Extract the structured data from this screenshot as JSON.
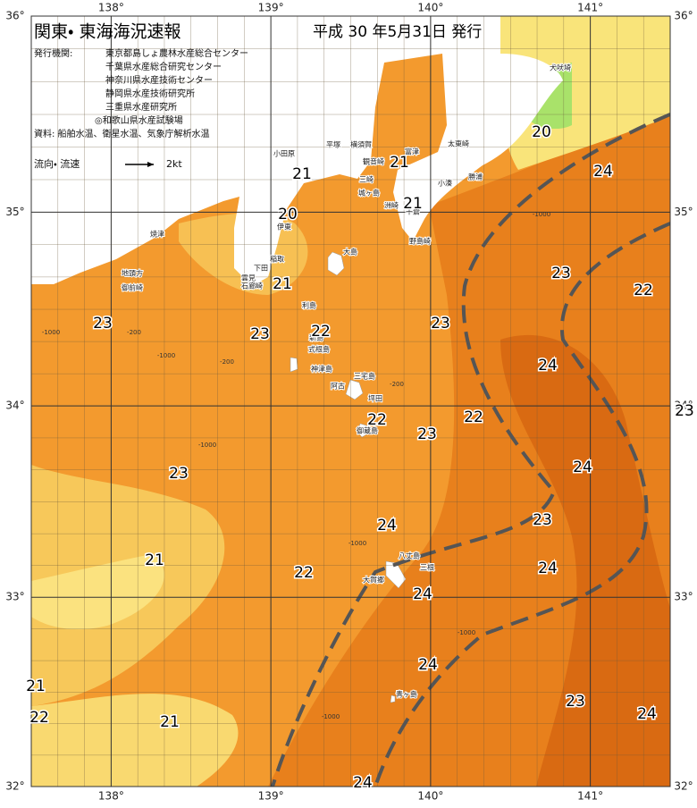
{
  "header": {
    "title": "関東・ 東海海況速報",
    "date": "平成 30 年5月31日 発行",
    "agencies_label": "発行機関:",
    "agencies": [
      "東京都島しょ農林水産総合センター",
      "千葉県水産総合研究センター",
      "神奈川県水産技術センター",
      "静岡県水産技術研究所",
      "三重県水産研究所",
      "◎和歌山県水産試験場"
    ],
    "source": "資料: 船舶水温、衛星水温、気象庁解析水温",
    "legend_label": "流向・ 流速",
    "legend_speed": "2kt"
  },
  "map": {
    "lon_ticks": [
      {
        "value": 138,
        "label": "138°"
      },
      {
        "value": 139,
        "label": "139°"
      },
      {
        "value": 140,
        "label": "140°"
      },
      {
        "value": 141,
        "label": "141°"
      }
    ],
    "lat_ticks": [
      {
        "value": 36,
        "label": "36°"
      },
      {
        "value": 35,
        "label": "35°"
      },
      {
        "value": 34,
        "label": "34°"
      },
      {
        "value": 33,
        "label": "33°"
      },
      {
        "value": 32,
        "label": "32°"
      }
    ],
    "lon_range": [
      137.5,
      141.5
    ],
    "lat_range": [
      32,
      36
    ]
  },
  "places": [
    "小田原",
    "平塚",
    "横須賀",
    "観音崎",
    "富津",
    "城ヶ島",
    "三崎",
    "洲崎",
    "小湊",
    "勝浦",
    "太東崎",
    "犬吠埼",
    "千倉",
    "野島崎",
    "伊東",
    "大島",
    "稲取",
    "下田",
    "雲見",
    "石廊崎",
    "御前崎",
    "地頭方",
    "焼津",
    "利島",
    "新島",
    "式根島",
    "神津島",
    "三宅島",
    "阿古",
    "坪田",
    "御蔵島",
    "八丈島",
    "三根",
    "大賀郷",
    "青ヶ島"
  ],
  "contour_labels": [
    "21",
    "21",
    "20",
    "21",
    "21",
    "20",
    "24",
    "23",
    "22",
    "23",
    "23",
    "22",
    "23",
    "24",
    "22",
    "23",
    "22",
    "23",
    "24",
    "23",
    "21",
    "24",
    "23",
    "24",
    "22",
    "24",
    "24",
    "23",
    "24",
    "21",
    "22",
    "21",
    "24"
  ],
  "depth_labels": [
    "-200",
    "-1000",
    "-200",
    "-1000",
    "-1000",
    "-200",
    "-1000",
    "-1000",
    "-1000",
    "-1000"
  ]
}
